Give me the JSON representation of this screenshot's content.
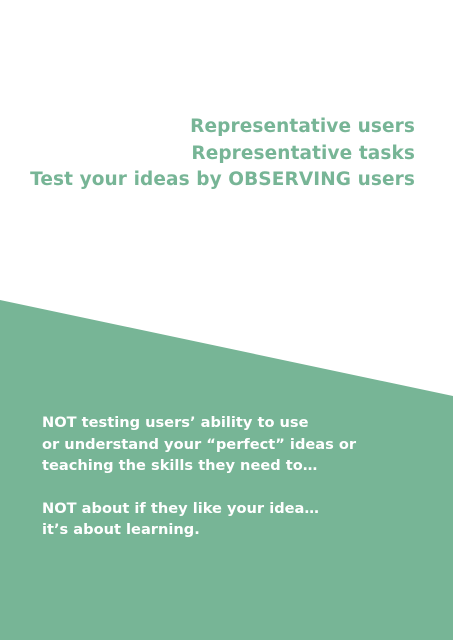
{
  "colors": {
    "accent": "#77b596",
    "background": "#ffffff",
    "text_on_accent": "#ffffff"
  },
  "heading": {
    "line1": "Representative users",
    "line2": "Representative tasks",
    "line3": "Test your ideas by OBSERVING users"
  },
  "notes": {
    "para1_line1": "NOT testing users’ ability to use",
    "para1_line2": "or understand your “perfect” ideas or",
    "para1_line3": "teaching the skills they need to…",
    "para2_line1": "NOT about if they like your idea…",
    "para2_line2": "it’s about learning."
  }
}
